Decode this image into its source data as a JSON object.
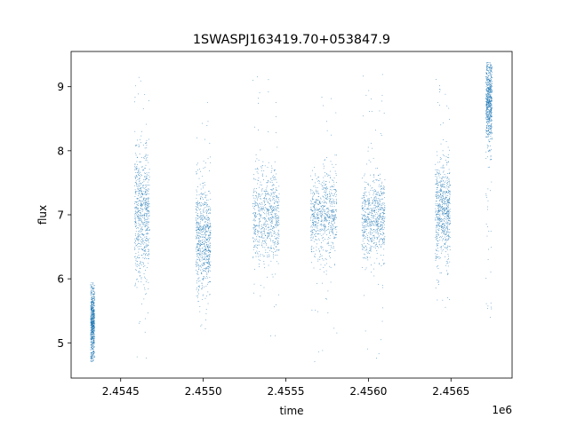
{
  "chart_data": {
    "type": "scatter",
    "title": "1SWASPJ163419.70+053847.9",
    "xlabel": "time",
    "ylabel": "flux",
    "x_offset_label": "1e6",
    "xlim": [
      2.4542,
      2.45687
    ],
    "ylim": [
      4.45,
      9.55
    ],
    "x_ticks": [
      {
        "value": 2.4545,
        "label": "2.4545"
      },
      {
        "value": 2.455,
        "label": "2.4550"
      },
      {
        "value": 2.4555,
        "label": "2.4555"
      },
      {
        "value": 2.456,
        "label": "2.4560"
      },
      {
        "value": 2.4565,
        "label": "2.4565"
      }
    ],
    "y_ticks": [
      {
        "value": 5,
        "label": "5"
      },
      {
        "value": 6,
        "label": "6"
      },
      {
        "value": 7,
        "label": "7"
      },
      {
        "value": 8,
        "label": "8"
      },
      {
        "value": 9,
        "label": "9"
      }
    ],
    "grid": false,
    "marker_color": "#1f77b4",
    "clusters": [
      {
        "x_center": 2.45433,
        "x_spread": 1.2e-05,
        "y_mean": 5.3,
        "y_sd": 0.28,
        "y_min": 4.7,
        "y_max": 5.95
      },
      {
        "x_center": 2.45463,
        "x_spread": 4.5e-05,
        "y_mean": 7.05,
        "y_sd": 0.52,
        "y_min": 4.7,
        "y_max": 9.2
      },
      {
        "x_center": 2.455,
        "x_spread": 4.5e-05,
        "y_mean": 6.6,
        "y_sd": 0.42,
        "y_min": 5.15,
        "y_max": 8.8
      },
      {
        "x_center": 2.45538,
        "x_spread": 8e-05,
        "y_mean": 6.95,
        "y_sd": 0.38,
        "y_min": 4.75,
        "y_max": 9.25
      },
      {
        "x_center": 2.45573,
        "x_spread": 8e-05,
        "y_mean": 7.0,
        "y_sd": 0.32,
        "y_min": 4.7,
        "y_max": 9.05
      },
      {
        "x_center": 2.45603,
        "x_spread": 7e-05,
        "y_mean": 6.95,
        "y_sd": 0.32,
        "y_min": 4.7,
        "y_max": 9.25
      },
      {
        "x_center": 2.45645,
        "x_spread": 4.5e-05,
        "y_mean": 7.1,
        "y_sd": 0.38,
        "y_min": 5.55,
        "y_max": 9.15
      },
      {
        "x_center": 2.45673,
        "x_spread": 1.8e-05,
        "y_mean": 8.8,
        "y_sd": 0.33,
        "y_min": 4.95,
        "y_max": 9.4
      }
    ]
  }
}
